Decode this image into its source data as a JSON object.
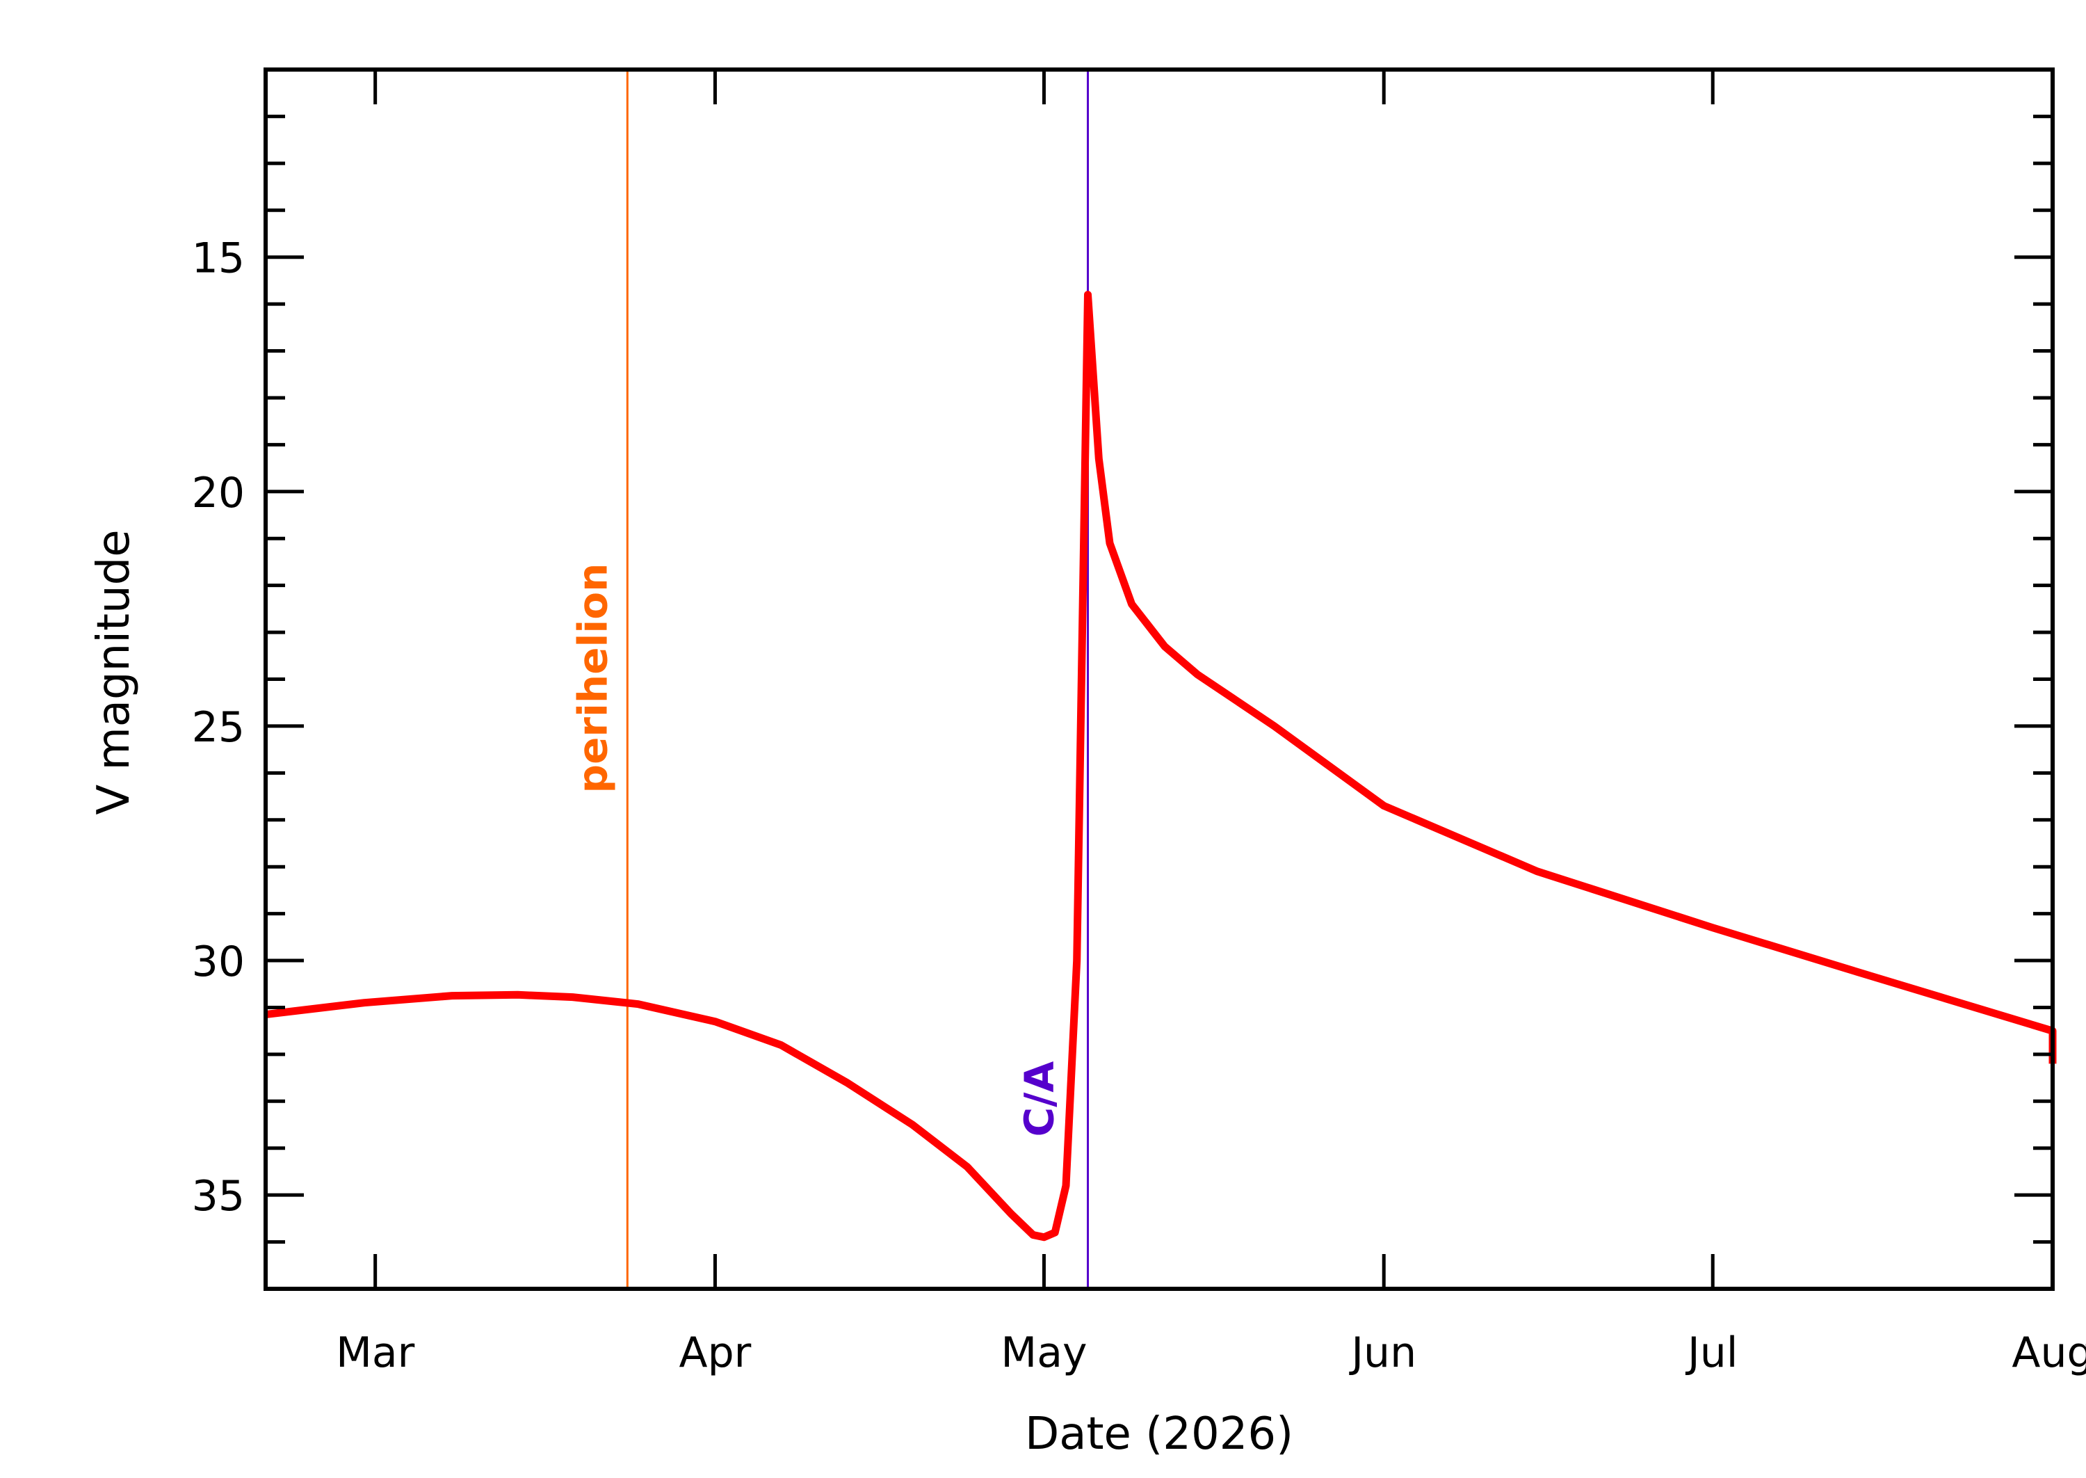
{
  "chart_data": {
    "type": "line",
    "title": "",
    "xlabel": "Date (2026)",
    "ylabel": "V magnitude",
    "x_ticks": [
      {
        "date": "2026-03-01",
        "label": "Mar"
      },
      {
        "date": "2026-04-01",
        "label": "Apr"
      },
      {
        "date": "2026-05-01",
        "label": "May"
      },
      {
        "date": "2026-06-01",
        "label": "Jun"
      },
      {
        "date": "2026-07-01",
        "label": "Jul"
      },
      {
        "date": "2026-08-01",
        "label": "Aug"
      }
    ],
    "xlim": [
      "2026-02-19",
      "2026-08-01"
    ],
    "y_ticks": [
      15,
      20,
      25,
      30,
      35
    ],
    "ylim": [
      37,
      11
    ],
    "y_inverted": true,
    "grid": false,
    "series": [
      {
        "color": "#ff0000",
        "points": [
          {
            "x": "2026-02-19",
            "y": 31.15
          },
          {
            "x": "2026-02-28",
            "y": 30.9
          },
          {
            "x": "2026-03-08",
            "y": 30.75
          },
          {
            "x": "2026-03-14",
            "y": 30.73
          },
          {
            "x": "2026-03-19",
            "y": 30.78
          },
          {
            "x": "2026-03-25",
            "y": 30.93
          },
          {
            "x": "2026-04-01",
            "y": 31.3
          },
          {
            "x": "2026-04-07",
            "y": 31.8
          },
          {
            "x": "2026-04-13",
            "y": 32.6
          },
          {
            "x": "2026-04-19",
            "y": 33.5
          },
          {
            "x": "2026-04-24",
            "y": 34.4
          },
          {
            "x": "2026-04-28",
            "y": 35.4
          },
          {
            "x": "2026-04-30",
            "y": 35.85
          },
          {
            "x": "2026-05-01",
            "y": 35.9
          },
          {
            "x": "2026-05-02",
            "y": 35.8
          },
          {
            "x": "2026-05-03",
            "y": 34.8
          },
          {
            "x": "2026-05-04",
            "y": 30.0
          },
          {
            "x": "2026-05-05",
            "y": 15.8
          },
          {
            "x": "2026-05-06",
            "y": 19.3
          },
          {
            "x": "2026-05-07",
            "y": 21.1
          },
          {
            "x": "2026-05-09",
            "y": 22.4
          },
          {
            "x": "2026-05-12",
            "y": 23.3
          },
          {
            "x": "2026-05-15",
            "y": 23.9
          },
          {
            "x": "2026-05-22",
            "y": 25.0
          },
          {
            "x": "2026-06-01",
            "y": 26.7
          },
          {
            "x": "2026-06-15",
            "y": 28.1
          },
          {
            "x": "2026-07-01",
            "y": 29.3
          },
          {
            "x": "2026-07-15",
            "y": 30.3
          },
          {
            "x": "2026-08-01",
            "y": 31.5
          },
          {
            "x": "2026-08-13",
            "y": 32.2
          }
        ]
      }
    ],
    "annotations": [
      {
        "label": "perihelion",
        "date": "2026-03-24",
        "color": "#ff6600"
      },
      {
        "label": "C/A",
        "date": "2026-05-05",
        "color": "#5500cc"
      }
    ]
  }
}
